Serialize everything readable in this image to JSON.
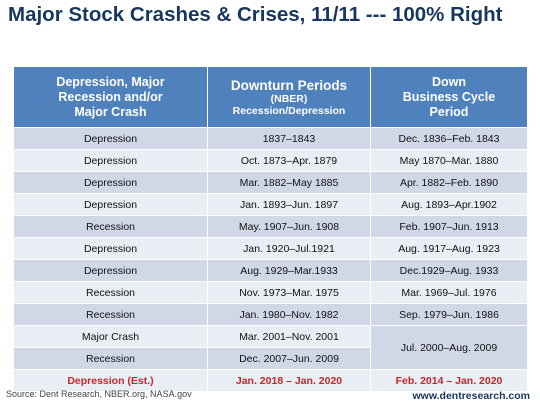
{
  "title": "Major Stock Crashes & Crises, 11/11 --- 100% Right",
  "table": {
    "header": [
      [
        "Depression, Major",
        "Recession and/or",
        "Major Crash"
      ],
      {
        "main": "Downturn Periods",
        "sub": [
          "(NBER)",
          "Recession/Depression"
        ]
      },
      [
        "Down",
        "Business Cycle",
        "Period"
      ]
    ],
    "rows": [
      [
        "Depression",
        "1837–1843",
        "Dec. 1836–Feb. 1843"
      ],
      [
        "Depression",
        "Oct. 1873–Apr. 1879",
        "May 1870–Mar. 1880"
      ],
      [
        "Depression",
        "Mar. 1882–May 1885",
        "Apr. 1882–Feb. 1890"
      ],
      [
        "Depression",
        "Jan. 1893–Jun. 1897",
        "Aug. 1893–Apr.1902"
      ],
      [
        "Recession",
        "May. 1907–Jun. 1908",
        "Feb. 1907–Jun. 1913"
      ],
      [
        "Depression",
        "Jan. 1920–Jul.1921",
        "Aug. 1917–Aug. 1923"
      ],
      [
        "Depression",
        "Aug. 1929–Mar.1933",
        "Dec.1929–Aug. 1933"
      ],
      [
        "Recession",
        "Nov. 1973–Mar. 1975",
        "Mar. 1969–Jul. 1976"
      ],
      [
        "Recession",
        "Jan. 1980–Nov. 1982",
        "Sep. 1979–Jun. 1986"
      ],
      [
        "Major Crash",
        "Mar. 2001–Nov. 2001",
        "Jul. 2000–Aug. 2009"
      ],
      [
        "Recession",
        "Dec. 2007–Jun. 2009"
      ],
      [
        "Depression (Est.)",
        "Jan. 2018 – Jan. 2020",
        "Feb. 2014 – Jan. 2020"
      ]
    ]
  },
  "source": "Source: Dent Research, NBER.org, NASA.gov",
  "website": "www.dentresearch.com"
}
